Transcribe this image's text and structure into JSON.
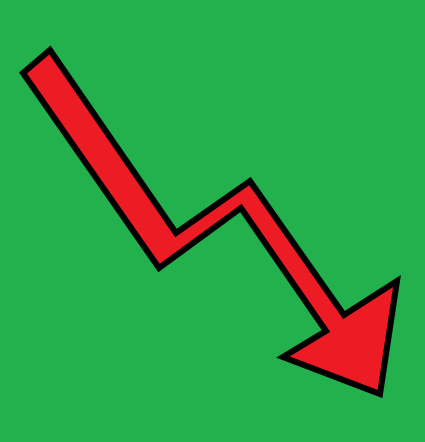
{
  "colors": {
    "background": "#23B14D",
    "arrow_fill": "#ED1C24",
    "arrow_outline": "#000000"
  },
  "icon": "downward-trend-arrow-icon"
}
